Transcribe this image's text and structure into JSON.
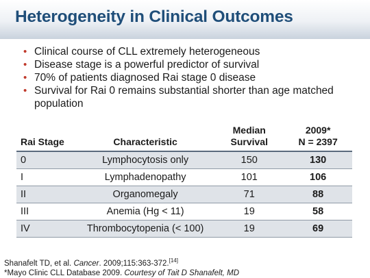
{
  "title": "Heterogeneity in Clinical Outcomes",
  "bullets": [
    "Clinical course of CLL extremely heterogeneous",
    "Disease stage is a powerful predictor of survival",
    "70% of patients diagnosed Rai stage 0 disease",
    "Survival for Rai 0 remains substantial shorter than age matched population"
  ],
  "bullet_glyph": "•",
  "table": {
    "headers": {
      "stage": "Rai Stage",
      "characteristic": "Characteristic",
      "survival_line1": "Median",
      "survival_line2": "Survival",
      "n_line1": "2009*",
      "n_line2": "N = 2397"
    },
    "rows": [
      {
        "stage": "0",
        "characteristic": "Lymphocytosis only",
        "survival": "150",
        "n": "130"
      },
      {
        "stage": "I",
        "characteristic": "Lymphadenopathy",
        "survival": "101",
        "n": "106"
      },
      {
        "stage": "II",
        "characteristic": "Organomegaly",
        "survival": "71",
        "n": "88"
      },
      {
        "stage": "III",
        "characteristic": "Anemia (Hg < 11)",
        "survival": "19",
        "n": "58"
      },
      {
        "stage": "IV",
        "characteristic": "Thrombocytopenia (< 100)",
        "survival": "19",
        "n": "69"
      }
    ]
  },
  "footnotes": {
    "line1_authors": "Shanafelt TD, et al. ",
    "line1_journal": "Cancer",
    "line1_rest": ". 2009;115:363-372.",
    "line1_ref": "[14]",
    "line2_text": "*Mayo Clinic CLL Database 2009. ",
    "line2_courtesy": "Courtesy of Tait D Shanafelt, MD"
  },
  "colors": {
    "title": "#1f4e79",
    "accent_values": "#a52a2a",
    "row_shade": "#dfe3e8"
  }
}
